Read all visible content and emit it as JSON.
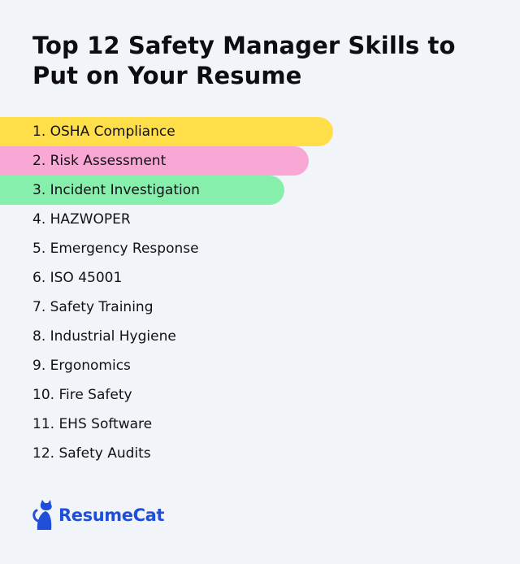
{
  "header": {
    "title": "Top 12 Safety Manager Skills to Put on Your Resume"
  },
  "skills": [
    {
      "label": "1. OSHA Compliance"
    },
    {
      "label": "2. Risk Assessment"
    },
    {
      "label": "3. Incident Investigation"
    },
    {
      "label": "4. HAZWOPER"
    },
    {
      "label": "5. Emergency Response"
    },
    {
      "label": "6. ISO 45001"
    },
    {
      "label": "7. Safety Training"
    },
    {
      "label": "8. Industrial Hygiene"
    },
    {
      "label": "9. Ergonomics"
    },
    {
      "label": "10. Fire Safety"
    },
    {
      "label": "11. EHS Software"
    },
    {
      "label": "12. Safety Audits"
    }
  ],
  "highlight_colors": [
    "#fedf49",
    "#f9a8d6",
    "#86efac"
  ],
  "brand": {
    "name": "ResumeCat",
    "icon": "cat-logo-icon",
    "color": "#1f4fd8"
  },
  "colors": {
    "background": "#f1f4f9",
    "text": "#0f0f14"
  }
}
